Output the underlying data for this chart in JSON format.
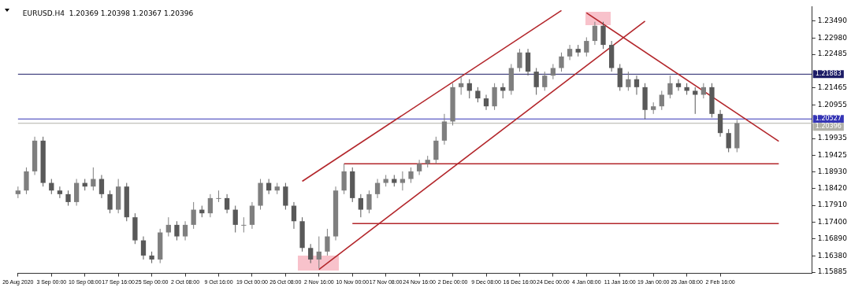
{
  "chart_data": {
    "type": "candlestick",
    "title": "EURUSD.H4  1.20369 1.20398 1.20367 1.20396",
    "colors": [
      "#7f7f7f",
      "#7f7f7f",
      "#7f7f7f",
      "#595959",
      "#595959",
      "#595959",
      "#595959",
      "#7f7f7f",
      "#595959",
      "#7f7f7f",
      "#595959",
      "#595959",
      "#7f7f7f",
      "#595959",
      "#595959",
      "#595959",
      "#595959",
      "#7f7f7f",
      "#7f7f7f",
      "#595959",
      "#7f7f7f",
      "#7f7f7f",
      "#595959",
      "#7f7f7f",
      "#7f7f7f",
      "#595959",
      "#595959",
      "#7f7f7f",
      "#7f7f7f",
      "#7f7f7f",
      "#595959",
      "#7f7f7f",
      "#595959",
      "#595959",
      "#595959",
      "#595959",
      "#7f7f7f",
      "#7f7f7f",
      "#7f7f7f",
      "#7f7f7f",
      "#595959",
      "#595959",
      "#7f7f7f",
      "#7f7f7f",
      "#7f7f7f",
      "#595959",
      "#7f7f7f",
      "#7f7f7f",
      "#7f7f7f",
      "#7f7f7f",
      "#7f7f7f",
      "#7f7f7f",
      "#7f7f7f",
      "#7f7f7f",
      "#595959",
      "#595959",
      "#595959",
      "#7f7f7f",
      "#595959",
      "#7f7f7f",
      "#7f7f7f",
      "#595959",
      "#595959",
      "#7f7f7f",
      "#7f7f7f",
      "#7f7f7f",
      "#7f7f7f",
      "#595959",
      "#7f7f7f",
      "#7f7f7f",
      "#595959",
      "#595959",
      "#595959",
      "#7f7f7f",
      "#595959",
      "#595959",
      "#7f7f7f",
      "#7f7f7f",
      "#7f7f7f",
      "#595959",
      "#595959",
      "#595959",
      "#7f7f7f",
      "#595959",
      "#595959",
      "#595959",
      "#7f7f7f",
      null,
      null,
      null,
      null,
      null,
      null,
      null,
      null,
      null
    ],
    "categories": [
      "26 Aug 2020",
      null,
      null,
      null,
      "3 Sep 00:00",
      null,
      null,
      null,
      "10 Sep 08:00",
      null,
      null,
      null,
      "17 Sep 16:00",
      null,
      null,
      null,
      "25 Sep 00:00",
      null,
      null,
      null,
      "2 Oct 08:00",
      null,
      null,
      null,
      "9 Oct 16:00",
      null,
      null,
      null,
      "19 Oct 00:00",
      null,
      null,
      null,
      "26 Oct 08:00",
      null,
      null,
      null,
      "2 Nov 16:00",
      null,
      null,
      null,
      "10 Nov 00:00",
      null,
      null,
      null,
      "17 Nov 08:00",
      null,
      null,
      null,
      "24 Nov 16:00",
      null,
      null,
      null,
      "2 Dec 00:00",
      null,
      null,
      null,
      "9 Dec 08:00",
      null,
      null,
      null,
      "16 Dec 16:00",
      null,
      null,
      null,
      "24 Dec 00:00",
      null,
      null,
      null,
      "4 Jan 08:00",
      null,
      null,
      null,
      "11 Jan 16:00",
      null,
      null,
      null,
      "19 Jan 00:00",
      null,
      null,
      null,
      "26 Jan 08:00",
      null,
      null,
      null,
      "2 Feb 16:00",
      null,
      null,
      null,
      null,
      null,
      null,
      null,
      null,
      null,
      null,
      null
    ],
    "ohlc": [
      [
        1.1825,
        1.1848,
        1.1813,
        1.1836
      ],
      [
        1.1836,
        1.1906,
        1.1825,
        1.1894
      ],
      [
        1.1894,
        1.1999,
        1.1883,
        1.1987
      ],
      [
        1.1987,
        1.1999,
        1.1848,
        1.1859
      ],
      [
        1.1859,
        1.1871,
        1.1825,
        1.1836
      ],
      [
        1.1836,
        1.1848,
        1.1813,
        1.1825
      ],
      [
        1.1825,
        1.1836,
        1.179,
        1.1801
      ],
      [
        1.1801,
        1.1871,
        1.179,
        1.1859
      ],
      [
        1.1859,
        1.1871,
        1.1836,
        1.1848
      ],
      [
        1.1848,
        1.1906,
        1.1836,
        1.1871
      ],
      [
        1.1871,
        1.1883,
        1.1813,
        1.1825
      ],
      [
        1.1825,
        1.1836,
        1.1767,
        1.1778
      ],
      [
        1.1778,
        1.1871,
        1.1767,
        1.1848
      ],
      [
        1.1848,
        1.1859,
        1.1743,
        1.1755
      ],
      [
        1.1755,
        1.1767,
        1.1674,
        1.1685
      ],
      [
        1.1685,
        1.1697,
        1.1627,
        1.1639
      ],
      [
        1.1639,
        1.1651,
        1.1616,
        1.1627
      ],
      [
        1.1627,
        1.172,
        1.1616,
        1.1709
      ],
      [
        1.1709,
        1.1755,
        1.1697,
        1.1732
      ],
      [
        1.1732,
        1.1743,
        1.1685,
        1.1697
      ],
      [
        1.1697,
        1.1743,
        1.1685,
        1.1732
      ],
      [
        1.1732,
        1.1801,
        1.172,
        1.1778
      ],
      [
        1.1778,
        1.179,
        1.1755,
        1.1767
      ],
      [
        1.1767,
        1.1825,
        1.1755,
        1.1813
      ],
      [
        1.1813,
        1.1836,
        1.1801,
        1.1813
      ],
      [
        1.1813,
        1.1825,
        1.1767,
        1.1778
      ],
      [
        1.1778,
        1.179,
        1.1709,
        1.1732
      ],
      [
        1.1732,
        1.1755,
        1.1709,
        1.1732
      ],
      [
        1.1732,
        1.1801,
        1.172,
        1.179
      ],
      [
        1.179,
        1.1871,
        1.1778,
        1.1859
      ],
      [
        1.1859,
        1.1871,
        1.1825,
        1.1836
      ],
      [
        1.1836,
        1.1859,
        1.1825,
        1.1848
      ],
      [
        1.1848,
        1.1859,
        1.1778,
        1.179
      ],
      [
        1.179,
        1.1801,
        1.172,
        1.1743
      ],
      [
        1.1743,
        1.1755,
        1.1651,
        1.1662
      ],
      [
        1.1662,
        1.1674,
        1.1616,
        1.1627
      ],
      [
        1.1627,
        1.1697,
        1.16,
        1.1651
      ],
      [
        1.1651,
        1.172,
        1.1639,
        1.1697
      ],
      [
        1.1697,
        1.1848,
        1.1685,
        1.1836
      ],
      [
        1.1836,
        1.1917,
        1.1825,
        1.1894
      ],
      [
        1.1894,
        1.1906,
        1.1801,
        1.1813
      ],
      [
        1.1813,
        1.1825,
        1.1755,
        1.1778
      ],
      [
        1.1778,
        1.1836,
        1.1767,
        1.1825
      ],
      [
        1.1825,
        1.1871,
        1.1813,
        1.1859
      ],
      [
        1.1859,
        1.1883,
        1.1848,
        1.1871
      ],
      [
        1.1871,
        1.1883,
        1.1848,
        1.1859
      ],
      [
        1.1859,
        1.1894,
        1.1836,
        1.1871
      ],
      [
        1.1871,
        1.1906,
        1.1859,
        1.1894
      ],
      [
        1.1894,
        1.1929,
        1.1883,
        1.1917
      ],
      [
        1.1917,
        1.1941,
        1.1906,
        1.1929
      ],
      [
        1.1929,
        1.1999,
        1.1917,
        1.1987
      ],
      [
        1.1987,
        1.2068,
        1.1975,
        1.2045
      ],
      [
        1.2045,
        1.2161,
        1.2033,
        1.2149
      ],
      [
        1.2149,
        1.2184,
        1.2126,
        1.2161
      ],
      [
        1.2161,
        1.2173,
        1.2115,
        1.2138
      ],
      [
        1.2138,
        1.2149,
        1.2103,
        1.2115
      ],
      [
        1.2115,
        1.2126,
        1.208,
        1.2091
      ],
      [
        1.2091,
        1.2161,
        1.208,
        1.2149
      ],
      [
        1.2149,
        1.2161,
        1.2115,
        1.2138
      ],
      [
        1.2138,
        1.2219,
        1.2126,
        1.2207
      ],
      [
        1.2207,
        1.2265,
        1.2196,
        1.2254
      ],
      [
        1.2254,
        1.2265,
        1.2184,
        1.2196
      ],
      [
        1.2196,
        1.2207,
        1.2126,
        1.2149
      ],
      [
        1.2149,
        1.2196,
        1.2138,
        1.2184
      ],
      [
        1.2184,
        1.2219,
        1.2173,
        1.2207
      ],
      [
        1.2207,
        1.2254,
        1.2196,
        1.2242
      ],
      [
        1.2242,
        1.2277,
        1.2231,
        1.2265
      ],
      [
        1.2265,
        1.2277,
        1.2242,
        1.2254
      ],
      [
        1.2254,
        1.23,
        1.2242,
        1.2289
      ],
      [
        1.2289,
        1.2347,
        1.2277,
        1.2335
      ],
      [
        1.2335,
        1.2347,
        1.2265,
        1.2277
      ],
      [
        1.2277,
        1.2289,
        1.2196,
        1.2207
      ],
      [
        1.2207,
        1.2219,
        1.2138,
        1.2149
      ],
      [
        1.2149,
        1.2196,
        1.2138,
        1.2173
      ],
      [
        1.2173,
        1.2184,
        1.2126,
        1.2149
      ],
      [
        1.2149,
        1.2161,
        1.2052,
        1.208
      ],
      [
        1.208,
        1.2103,
        1.2068,
        1.2091
      ],
      [
        1.2091,
        1.2138,
        1.208,
        1.2126
      ],
      [
        1.2126,
        1.2184,
        1.2115,
        1.2161
      ],
      [
        1.2161,
        1.2173,
        1.2138,
        1.2149
      ],
      [
        1.2149,
        1.2161,
        1.2126,
        1.2138
      ],
      [
        1.2138,
        1.2149,
        1.2068,
        1.2126
      ],
      [
        1.2126,
        1.2161,
        1.2115,
        1.2149
      ],
      [
        1.2149,
        1.2161,
        1.2057,
        1.2068
      ],
      [
        1.2068,
        1.208,
        1.1999,
        1.201
      ],
      [
        1.201,
        1.2022,
        1.1952,
        1.1964
      ],
      [
        1.1964,
        1.205,
        1.1952,
        1.204
      ],
      null,
      null,
      null,
      null,
      null,
      null,
      null,
      null,
      null
    ],
    "series": [
      {
        "type": "line",
        "color": "#b3262b",
        "values": [
          null,
          null,
          null,
          null,
          null,
          null,
          null,
          null,
          null,
          null,
          null,
          null,
          null,
          null,
          null,
          null,
          null,
          null,
          null,
          null,
          null,
          null,
          null,
          null,
          null,
          null,
          null,
          null,
          null,
          null,
          null,
          null,
          null,
          null,
          1.1864,
          null,
          null,
          null,
          null,
          null,
          null,
          null,
          null,
          null,
          null,
          null,
          null,
          null,
          null,
          null,
          null,
          null,
          null,
          null,
          null,
          null,
          null,
          null,
          null,
          null,
          null,
          null,
          null,
          null,
          null,
          1.2381,
          null,
          null,
          null,
          null,
          null,
          null,
          null,
          null,
          null,
          null,
          null,
          null,
          null,
          null,
          null,
          null,
          null,
          null,
          null,
          null,
          null,
          null,
          null,
          null,
          null,
          null,
          null,
          null,
          null,
          null
        ]
      },
      {
        "type": "line",
        "color": "#b3262b",
        "values": [
          null,
          null,
          null,
          null,
          null,
          null,
          null,
          null,
          null,
          null,
          null,
          null,
          null,
          null,
          null,
          null,
          null,
          null,
          null,
          null,
          null,
          null,
          null,
          null,
          null,
          null,
          null,
          null,
          null,
          null,
          null,
          null,
          null,
          null,
          null,
          null,
          1.1597,
          null,
          null,
          null,
          null,
          null,
          null,
          null,
          null,
          null,
          null,
          null,
          null,
          null,
          null,
          null,
          null,
          null,
          null,
          null,
          null,
          null,
          null,
          null,
          null,
          null,
          null,
          null,
          null,
          null,
          null,
          null,
          null,
          null,
          null,
          null,
          null,
          null,
          null,
          1.2349,
          null,
          null,
          null,
          null,
          null,
          null,
          null,
          null,
          null,
          null,
          null,
          null,
          null,
          null,
          null,
          null,
          null,
          null,
          null,
          null
        ]
      },
      {
        "type": "line",
        "color": "#b3262b",
        "values": [
          null,
          null,
          null,
          null,
          null,
          null,
          null,
          null,
          null,
          null,
          null,
          null,
          null,
          null,
          null,
          null,
          null,
          null,
          null,
          null,
          null,
          null,
          null,
          null,
          null,
          null,
          null,
          null,
          null,
          null,
          null,
          null,
          null,
          null,
          null,
          null,
          null,
          null,
          null,
          null,
          null,
          null,
          null,
          null,
          null,
          null,
          null,
          null,
          null,
          null,
          null,
          null,
          null,
          null,
          null,
          null,
          null,
          null,
          null,
          null,
          null,
          null,
          null,
          null,
          null,
          null,
          null,
          null,
          1.2374,
          null,
          null,
          null,
          null,
          null,
          null,
          null,
          null,
          null,
          null,
          null,
          null,
          null,
          null,
          null,
          null,
          null,
          null,
          null,
          null,
          null,
          null,
          1.1985,
          null,
          null,
          null,
          null
        ]
      },
      {
        "type": "line",
        "color": "#b3262b",
        "values": [
          null,
          null,
          null,
          null,
          null,
          null,
          null,
          null,
          null,
          null,
          null,
          null,
          null,
          null,
          null,
          null,
          null,
          null,
          null,
          null,
          null,
          null,
          null,
          null,
          null,
          null,
          null,
          null,
          null,
          null,
          null,
          null,
          null,
          null,
          null,
          null,
          null,
          null,
          null,
          1.1917,
          null,
          null,
          null,
          null,
          null,
          null,
          null,
          null,
          null,
          null,
          null,
          null,
          null,
          null,
          null,
          null,
          null,
          null,
          null,
          null,
          null,
          null,
          null,
          null,
          null,
          null,
          null,
          null,
          null,
          null,
          null,
          null,
          null,
          null,
          null,
          null,
          null,
          null,
          null,
          null,
          null,
          null,
          null,
          null,
          null,
          null,
          null,
          null,
          null,
          null,
          null,
          1.1917,
          null,
          null,
          null,
          null
        ]
      },
      {
        "type": "line",
        "color": "#b3262b",
        "values": [
          null,
          null,
          null,
          null,
          null,
          null,
          null,
          null,
          null,
          null,
          null,
          null,
          null,
          null,
          null,
          null,
          null,
          null,
          null,
          null,
          null,
          null,
          null,
          null,
          null,
          null,
          null,
          null,
          null,
          null,
          null,
          null,
          null,
          null,
          null,
          null,
          null,
          null,
          null,
          null,
          1.1736,
          null,
          null,
          null,
          null,
          null,
          null,
          null,
          null,
          null,
          null,
          null,
          null,
          null,
          null,
          null,
          null,
          null,
          null,
          null,
          null,
          null,
          null,
          null,
          null,
          null,
          null,
          null,
          null,
          null,
          null,
          null,
          null,
          null,
          null,
          null,
          null,
          null,
          null,
          null,
          null,
          null,
          null,
          null,
          null,
          null,
          null,
          null,
          null,
          null,
          null,
          1.1736,
          null,
          null,
          null,
          null
        ]
      }
    ],
    "ylim": [
      1.1585,
      1.2393
    ],
    "yticks": [
      {
        "value": 1.2349,
        "label": "1.23490"
      },
      {
        "value": 1.2298,
        "label": "1.22980"
      },
      {
        "value": 1.22485,
        "label": "1.22485"
      },
      {
        "value": 1.21465,
        "label": "1.21465"
      },
      {
        "value": 1.20955,
        "label": "1.20955"
      },
      {
        "value": 1.19935,
        "label": "1.19935"
      },
      {
        "value": 1.19425,
        "label": "1.19425"
      },
      {
        "value": 1.1893,
        "label": "1.18930"
      },
      {
        "value": 1.1842,
        "label": "1.18420"
      },
      {
        "value": 1.1791,
        "label": "1.17910"
      },
      {
        "value": 1.174,
        "label": "1.17400"
      },
      {
        "value": 1.1689,
        "label": "1.16890"
      },
      {
        "value": 1.1638,
        "label": "1.16380"
      },
      {
        "value": 1.15885,
        "label": "1.15885"
      }
    ],
    "ref_lines": [
      {
        "axis": "y",
        "value": 1.21883,
        "label": "1.21883",
        "color": "#1c1c66"
      },
      {
        "axis": "y",
        "value": 1.20527,
        "label": "1.20527",
        "color": "#3535b5"
      },
      {
        "axis": "y",
        "value": 1.20396,
        "label": "1.20396",
        "color": "#b0b0a8"
      }
    ]
  }
}
